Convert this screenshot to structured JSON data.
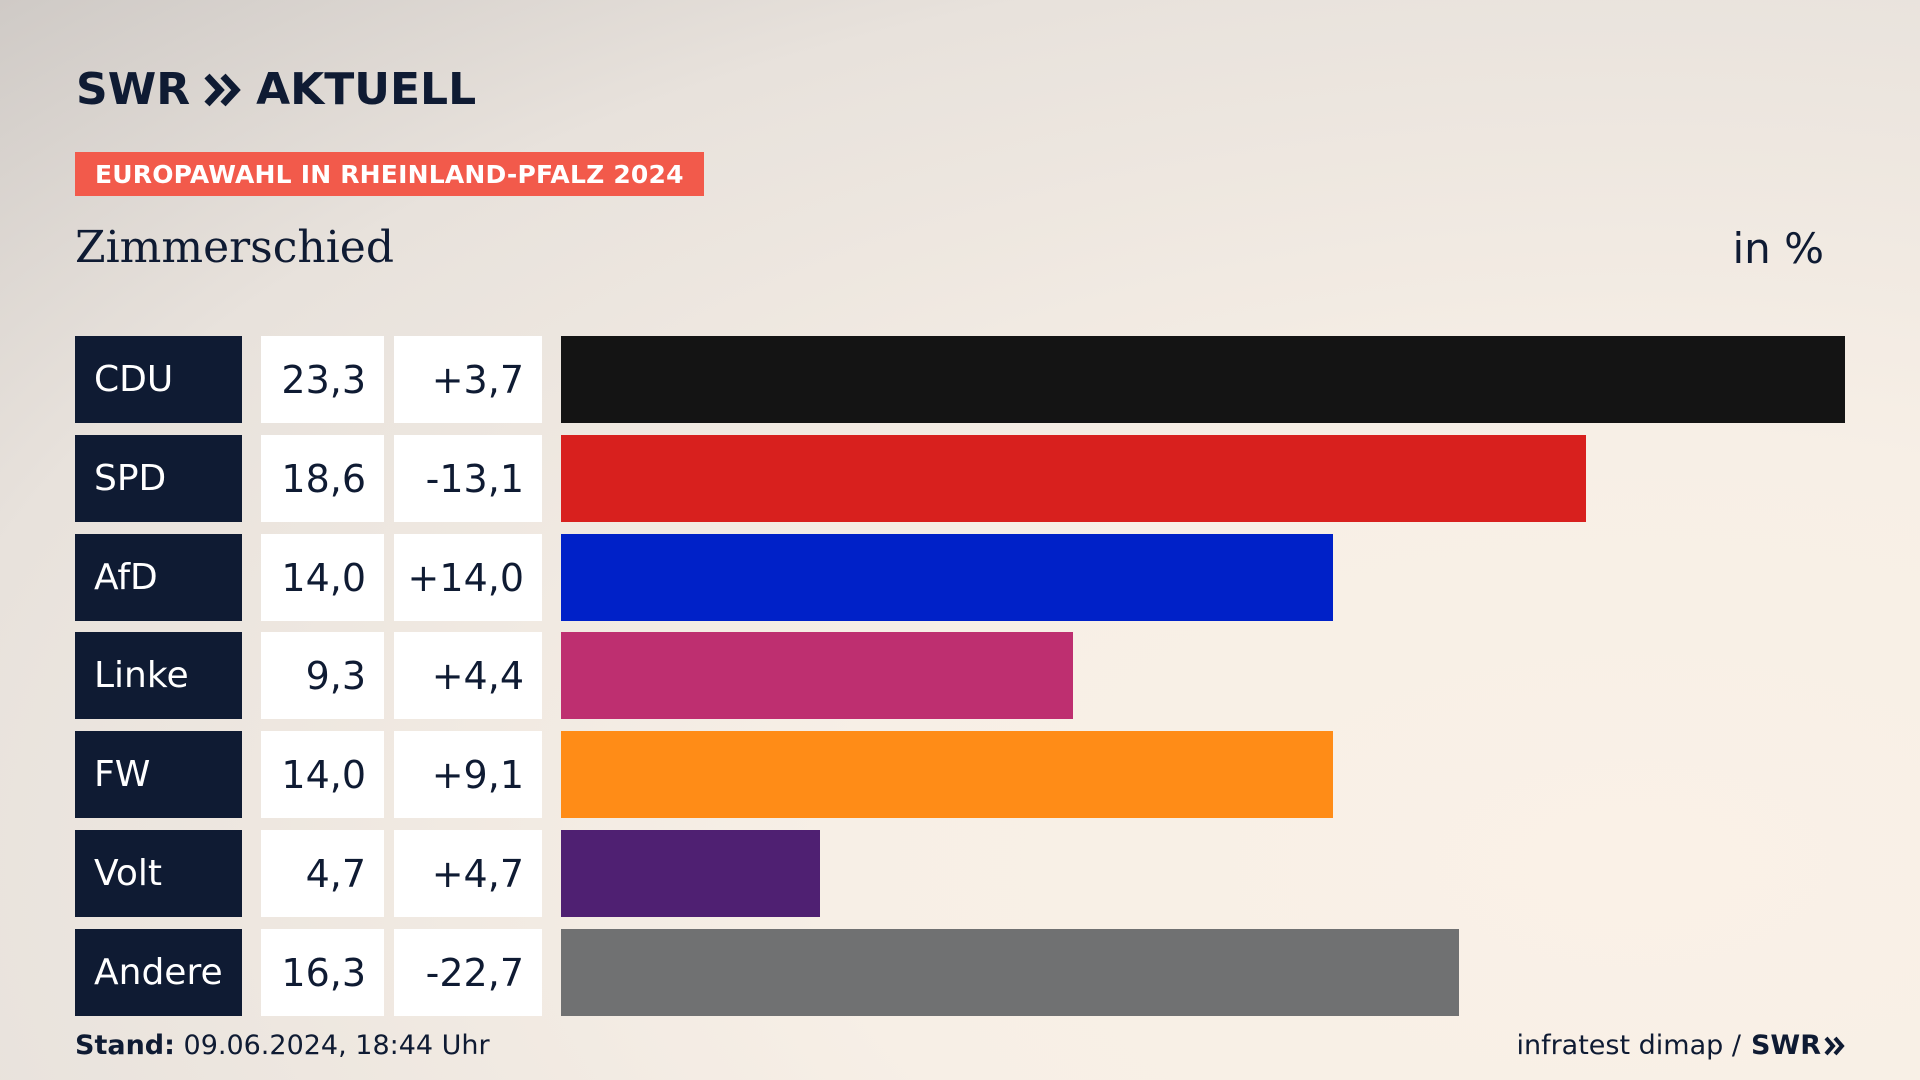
{
  "brand": {
    "name": "SWR",
    "product": "AKTUELL"
  },
  "tag": "EUROPAWAHL IN RHEINLAND-PFALZ 2024",
  "title": "Zimmerschied",
  "unit": "in %",
  "colors": {
    "navy": "#0f1b33",
    "tag": "#f25a4b"
  },
  "chart_data": {
    "type": "bar",
    "orientation": "horizontal",
    "categories": [
      "CDU",
      "SPD",
      "AfD",
      "Linke",
      "FW",
      "Volt",
      "Andere"
    ],
    "values": [
      23.3,
      18.6,
      14.0,
      9.3,
      14.0,
      4.7,
      16.3
    ],
    "value_labels": [
      "23,3",
      "18,6",
      "14,0",
      "9,3",
      "14,0",
      "4,7",
      "16,3"
    ],
    "diff_labels": [
      "+3,7",
      "-13,1",
      "+14,0",
      "+4,4",
      "+9,1",
      "+4,7",
      "-22,7"
    ],
    "colors": [
      "#141414",
      "#d8201e",
      "#0021c8",
      "#be2f70",
      "#ff8c17",
      "#4f2072",
      "#707172"
    ],
    "xlim": [
      0,
      23.3
    ],
    "grid": false,
    "legend": "none"
  },
  "footer": {
    "stand_label": "Stand:",
    "stand_value": "09.06.2024, 18:44 Uhr",
    "source": "infratest dimap /",
    "source_brand": "SWR"
  }
}
